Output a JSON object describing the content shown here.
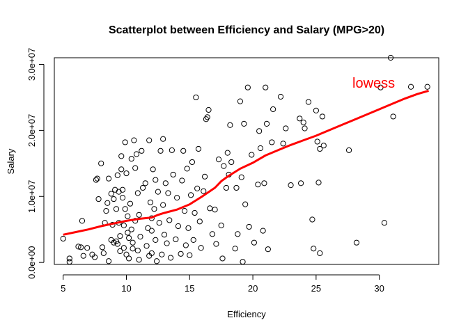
{
  "chart_data": {
    "type": "scatter",
    "title": "Scatterplot between Efficiency and Salary (MPG>20)",
    "xlabel": "Efficiency",
    "ylabel": "Salary",
    "xlim": [
      4.3,
      34.7
    ],
    "ylim": [
      -300000,
      31000000
    ],
    "x_ticks": [
      5,
      10,
      15,
      20,
      25,
      30
    ],
    "x_tick_labels": [
      "5",
      "10",
      "15",
      "20",
      "25",
      "30"
    ],
    "y_ticks": [
      0,
      10000000,
      20000000,
      30000000
    ],
    "y_tick_labels": [
      "0.0e+00",
      "1.0e+07",
      "2.0e+07",
      "3.0e+07"
    ],
    "annotation": "lowess",
    "point_color": "#000000",
    "lowess_color": "#ff0000",
    "points": [
      [
        5.0,
        3600000
      ],
      [
        5.5,
        600000
      ],
      [
        5.5,
        100000
      ],
      [
        6.2,
        2400000
      ],
      [
        6.4,
        2300000
      ],
      [
        6.6,
        1000000
      ],
      [
        6.5,
        6300000
      ],
      [
        6.9,
        2200000
      ],
      [
        7.3,
        1200000
      ],
      [
        7.5,
        800000
      ],
      [
        7.6,
        12500000
      ],
      [
        7.7,
        12700000
      ],
      [
        7.8,
        9600000
      ],
      [
        8.0,
        15000000
      ],
      [
        8.1,
        2300000
      ],
      [
        8.2,
        1400000
      ],
      [
        8.3,
        6000000
      ],
      [
        8.4,
        7800000
      ],
      [
        8.5,
        9000000
      ],
      [
        8.6,
        12700000
      ],
      [
        8.6,
        200000
      ],
      [
        8.8,
        3400000
      ],
      [
        8.8,
        10400000
      ],
      [
        8.9,
        5700000
      ],
      [
        9.0,
        3000000
      ],
      [
        9.0,
        9600000
      ],
      [
        9.1,
        11000000
      ],
      [
        9.2,
        8100000
      ],
      [
        9.2,
        3200000
      ],
      [
        9.3,
        13200000
      ],
      [
        9.3,
        2800000
      ],
      [
        9.4,
        10700000
      ],
      [
        9.4,
        6000000
      ],
      [
        9.5,
        1700000
      ],
      [
        9.5,
        4000000
      ],
      [
        9.6,
        16100000
      ],
      [
        9.6,
        14100000
      ],
      [
        9.7,
        11000000
      ],
      [
        9.7,
        9800000
      ],
      [
        9.8,
        5600000
      ],
      [
        9.8,
        2200000
      ],
      [
        9.9,
        18200000
      ],
      [
        9.9,
        8100000
      ],
      [
        10.0,
        13500000
      ],
      [
        10.0,
        1200000
      ],
      [
        10.1,
        4500000
      ],
      [
        10.1,
        7000000
      ],
      [
        10.2,
        3700000
      ],
      [
        10.2,
        600000
      ],
      [
        10.3,
        8900000
      ],
      [
        10.4,
        15700000
      ],
      [
        10.4,
        5000000
      ],
      [
        10.5,
        3000000
      ],
      [
        10.5,
        2100000
      ],
      [
        10.6,
        18500000
      ],
      [
        10.7,
        14300000
      ],
      [
        10.7,
        6300000
      ],
      [
        10.8,
        16400000
      ],
      [
        10.9,
        1800000
      ],
      [
        10.9,
        10500000
      ],
      [
        11.0,
        400000
      ],
      [
        11.0,
        7200000
      ],
      [
        11.1,
        3900000
      ],
      [
        11.2,
        16900000
      ],
      [
        11.3,
        11300000
      ],
      [
        11.5,
        12000000
      ],
      [
        11.6,
        2500000
      ],
      [
        11.7,
        5200000
      ],
      [
        11.8,
        1000000
      ],
      [
        11.8,
        18500000
      ],
      [
        11.9,
        9100000
      ],
      [
        12.0,
        4800000
      ],
      [
        12.0,
        6700000
      ],
      [
        12.0,
        1400000
      ],
      [
        12.1,
        14100000
      ],
      [
        12.2,
        8100000
      ],
      [
        12.3,
        12500000
      ],
      [
        12.3,
        3400000
      ],
      [
        12.4,
        200000
      ],
      [
        12.5,
        10700000
      ],
      [
        12.6,
        6000000
      ],
      [
        12.7,
        16900000
      ],
      [
        12.8,
        1200000
      ],
      [
        12.9,
        18700000
      ],
      [
        12.9,
        8700000
      ],
      [
        13.0,
        4200000
      ],
      [
        13.1,
        12000000
      ],
      [
        13.2,
        2900000
      ],
      [
        13.3,
        10500000
      ],
      [
        13.4,
        6400000
      ],
      [
        13.5,
        700000
      ],
      [
        13.6,
        17000000
      ],
      [
        13.7,
        13300000
      ],
      [
        13.9,
        3500000
      ],
      [
        14.0,
        9800000
      ],
      [
        14.1,
        5500000
      ],
      [
        14.3,
        1300000
      ],
      [
        14.4,
        12400000
      ],
      [
        14.5,
        16900000
      ],
      [
        14.6,
        7800000
      ],
      [
        14.7,
        2600000
      ],
      [
        14.8,
        14200000
      ],
      [
        14.9,
        5200000
      ],
      [
        15.0,
        1100000
      ],
      [
        15.1,
        10200000
      ],
      [
        15.2,
        15200000
      ],
      [
        15.3,
        3400000
      ],
      [
        15.4,
        7500000
      ],
      [
        15.5,
        25000000
      ],
      [
        15.6,
        11200000
      ],
      [
        15.7,
        17200000
      ],
      [
        15.8,
        6200000
      ],
      [
        15.9,
        2200000
      ],
      [
        16.1,
        10800000
      ],
      [
        16.2,
        13000000
      ],
      [
        16.3,
        21700000
      ],
      [
        16.4,
        22000000
      ],
      [
        16.5,
        23100000
      ],
      [
        16.6,
        8200000
      ],
      [
        16.8,
        4300000
      ],
      [
        17.0,
        8000000
      ],
      [
        17.1,
        2800000
      ],
      [
        17.3,
        15600000
      ],
      [
        17.5,
        5600000
      ],
      [
        17.6,
        600000
      ],
      [
        17.7,
        14600000
      ],
      [
        17.9,
        11300000
      ],
      [
        18.0,
        16600000
      ],
      [
        18.1,
        13300000
      ],
      [
        18.2,
        20800000
      ],
      [
        18.3,
        15200000
      ],
      [
        18.6,
        2100000
      ],
      [
        18.7,
        11300000
      ],
      [
        18.8,
        4300000
      ],
      [
        19.0,
        24400000
      ],
      [
        19.1,
        12900000
      ],
      [
        19.2,
        100000
      ],
      [
        19.3,
        21000000
      ],
      [
        19.4,
        8800000
      ],
      [
        19.6,
        26500000
      ],
      [
        19.7,
        5400000
      ],
      [
        19.9,
        16300000
      ],
      [
        20.1,
        3000000
      ],
      [
        20.4,
        11800000
      ],
      [
        20.5,
        19900000
      ],
      [
        20.6,
        17300000
      ],
      [
        20.8,
        4800000
      ],
      [
        20.9,
        12000000
      ],
      [
        21.0,
        26500000
      ],
      [
        21.1,
        21000000
      ],
      [
        21.2,
        2000000
      ],
      [
        21.5,
        18200000
      ],
      [
        21.6,
        23200000
      ],
      [
        22.2,
        25100000
      ],
      [
        22.4,
        18000000
      ],
      [
        22.6,
        20300000
      ],
      [
        23.0,
        11700000
      ],
      [
        23.7,
        21800000
      ],
      [
        23.8,
        12000000
      ],
      [
        24.0,
        21200000
      ],
      [
        24.1,
        20300000
      ],
      [
        24.4,
        24300000
      ],
      [
        24.7,
        6500000
      ],
      [
        24.8,
        2100000
      ],
      [
        25.0,
        23000000
      ],
      [
        25.1,
        18300000
      ],
      [
        25.2,
        12100000
      ],
      [
        25.3,
        17200000
      ],
      [
        25.3,
        1400000
      ],
      [
        25.5,
        22100000
      ],
      [
        25.6,
        17700000
      ],
      [
        27.6,
        17000000
      ],
      [
        28.2,
        3000000
      ],
      [
        30.1,
        26500000
      ],
      [
        30.4,
        6000000
      ],
      [
        30.9,
        31000000
      ],
      [
        31.1,
        22100000
      ],
      [
        32.5,
        26600000
      ],
      [
        33.8,
        26600000
      ]
    ],
    "lowess": [
      [
        5.0,
        4200000
      ],
      [
        6.0,
        4600000
      ],
      [
        7.0,
        5000000
      ],
      [
        8.0,
        5500000
      ],
      [
        9.0,
        5900000
      ],
      [
        10.0,
        6300000
      ],
      [
        11.0,
        6600000
      ],
      [
        12.0,
        6800000
      ],
      [
        12.5,
        7200000
      ],
      [
        13.0,
        7500000
      ],
      [
        14.0,
        8000000
      ],
      [
        15.0,
        8800000
      ],
      [
        16.0,
        10000000
      ],
      [
        17.0,
        11300000
      ],
      [
        17.5,
        12300000
      ],
      [
        18.0,
        13000000
      ],
      [
        19.0,
        14200000
      ],
      [
        20.0,
        15100000
      ],
      [
        21.0,
        16200000
      ],
      [
        22.0,
        17000000
      ],
      [
        23.0,
        17800000
      ],
      [
        24.0,
        18500000
      ],
      [
        25.0,
        19200000
      ],
      [
        26.0,
        20000000
      ],
      [
        27.0,
        20800000
      ],
      [
        28.0,
        21600000
      ],
      [
        29.0,
        22400000
      ],
      [
        30.0,
        23200000
      ],
      [
        31.0,
        24000000
      ],
      [
        32.0,
        24800000
      ],
      [
        33.0,
        25500000
      ],
      [
        33.9,
        26000000
      ]
    ]
  }
}
